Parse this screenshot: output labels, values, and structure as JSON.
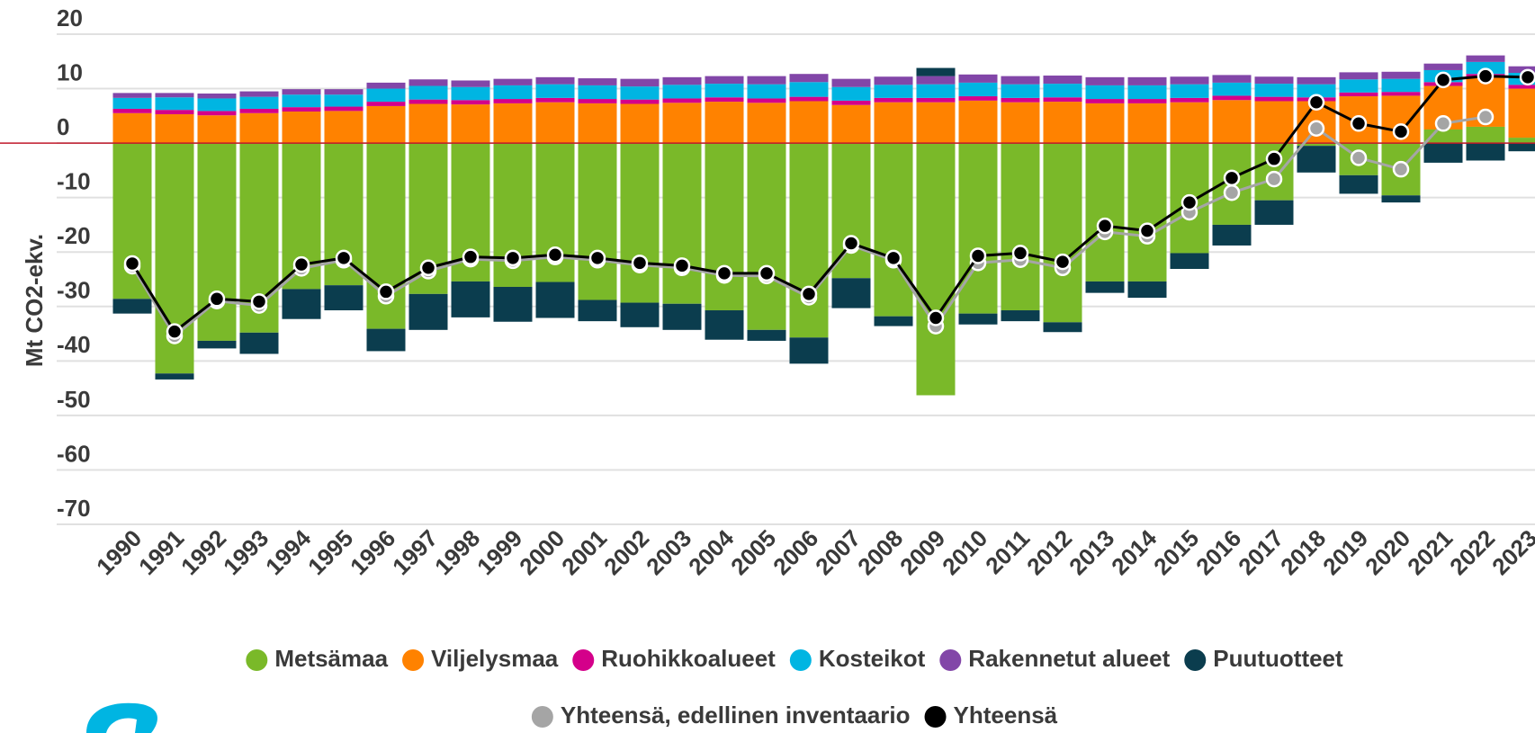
{
  "chart_data": {
    "type": "bar",
    "stacked": true,
    "y_label": "Mt CO2-ekv.",
    "categories": [
      "1990",
      "1991",
      "1992",
      "1993",
      "1994",
      "1995",
      "1996",
      "1997",
      "1998",
      "1999",
      "2000",
      "2001",
      "2002",
      "2003",
      "2004",
      "2005",
      "2006",
      "2007",
      "2008",
      "2009",
      "2010",
      "2011",
      "2012",
      "2013",
      "2014",
      "2015",
      "2016",
      "2017",
      "2018",
      "2019",
      "2020",
      "2021",
      "2022",
      "2023"
    ],
    "ylim": [
      -70,
      20
    ],
    "yticks": [
      -70,
      -60,
      -50,
      -40,
      -30,
      -20,
      -10,
      0,
      10,
      20
    ],
    "grid": true,
    "series": [
      {
        "name": "Metsämaa",
        "color": "#7ab929",
        "values": [
          -28.6,
          -42.3,
          -36.3,
          -34.8,
          -26.8,
          -26.1,
          -34.1,
          -27.7,
          -25.4,
          -26.4,
          -25.5,
          -28.8,
          -29.3,
          -29.5,
          -30.7,
          -34.3,
          -35.7,
          -24.8,
          -31.8,
          -46.3,
          -31.3,
          -30.7,
          -32.9,
          -25.4,
          -25.4,
          -20.2,
          -15.0,
          -10.5,
          -0.5,
          -5.9,
          -9.6,
          2.5,
          3.0,
          1.0
        ]
      },
      {
        "name": "Viljelysmaa",
        "color": "#ff8200",
        "values": [
          5.5,
          5.3,
          5.1,
          5.5,
          5.8,
          5.9,
          6.8,
          7.2,
          7.1,
          7.3,
          7.5,
          7.3,
          7.2,
          7.4,
          7.6,
          7.4,
          7.7,
          7.0,
          7.5,
          7.5,
          7.8,
          7.5,
          7.6,
          7.3,
          7.3,
          7.5,
          7.9,
          7.7,
          7.7,
          8.6,
          8.7,
          8.0,
          9.0,
          9.0
        ]
      },
      {
        "name": "Ruohikkoalueet",
        "color": "#d4008a",
        "values": [
          0.8,
          0.8,
          0.8,
          0.8,
          0.8,
          0.8,
          0.8,
          0.8,
          0.8,
          0.8,
          0.8,
          0.8,
          0.8,
          0.8,
          0.8,
          0.8,
          0.8,
          0.8,
          0.8,
          0.8,
          0.8,
          0.8,
          0.8,
          0.8,
          0.8,
          0.8,
          0.8,
          0.8,
          0.7,
          0.7,
          0.7,
          0.7,
          0.7,
          0.7
        ]
      },
      {
        "name": "Kosteikot",
        "color": "#00b5e2",
        "values": [
          2.0,
          2.3,
          2.3,
          2.2,
          2.3,
          2.2,
          2.4,
          2.5,
          2.4,
          2.5,
          2.5,
          2.5,
          2.4,
          2.5,
          2.5,
          2.6,
          2.7,
          2.5,
          2.4,
          2.5,
          2.5,
          2.5,
          2.5,
          2.5,
          2.5,
          2.5,
          2.4,
          2.4,
          2.4,
          2.4,
          2.4,
          2.2,
          2.2,
          2.2
        ]
      },
      {
        "name": "Rakennetut alueet",
        "color": "#8246a8",
        "values": [
          0.9,
          0.8,
          0.9,
          1.0,
          1.0,
          1.0,
          1.1,
          1.2,
          1.2,
          1.2,
          1.3,
          1.3,
          1.4,
          1.4,
          1.4,
          1.5,
          1.5,
          1.5,
          1.5,
          1.5,
          1.5,
          1.5,
          1.5,
          1.5,
          1.5,
          1.4,
          1.4,
          1.3,
          1.3,
          1.3,
          1.3,
          1.2,
          1.2,
          1.2
        ]
      },
      {
        "name": "Puutuotteet",
        "color": "#0b3d4e",
        "values": [
          -2.7,
          -1.1,
          -1.4,
          -3.9,
          -5.5,
          -4.6,
          -4.1,
          -6.6,
          -6.6,
          -6.4,
          -6.6,
          -3.9,
          -4.5,
          -4.8,
          -5.4,
          -2.0,
          -4.8,
          -5.5,
          -1.8,
          1.5,
          -2.0,
          -2.0,
          -1.8,
          -2.1,
          -3.0,
          -2.9,
          -3.8,
          -4.5,
          -4.9,
          -3.4,
          -1.3,
          -3.6,
          -3.2,
          -1.5
        ]
      },
      {
        "name": "Yhteensä, edellinen inventaario",
        "type": "line",
        "color": "#a5a5a5",
        "values": [
          -22.6,
          -35.4,
          -29.0,
          -29.8,
          -23.0,
          -21.5,
          -28.1,
          -23.5,
          -21.3,
          -21.6,
          -20.9,
          -21.5,
          -22.4,
          -22.9,
          -24.3,
          -24.4,
          -28.3,
          -18.8,
          -21.5,
          -33.6,
          -22.0,
          -21.4,
          -22.9,
          -16.3,
          -17.1,
          -12.7,
          -9.1,
          -6.6,
          2.7,
          -2.7,
          -4.8,
          3.6,
          4.8,
          null
        ]
      },
      {
        "name": "Yhteensä",
        "type": "line",
        "color": "#000000",
        "values": [
          -22.1,
          -34.6,
          -28.6,
          -29.1,
          -22.3,
          -21.1,
          -27.3,
          -22.9,
          -20.9,
          -21.1,
          -20.5,
          -21.1,
          -22.0,
          -22.5,
          -23.9,
          -23.9,
          -27.7,
          -18.4,
          -21.1,
          -32.1,
          -20.7,
          -20.2,
          -21.8,
          -15.2,
          -16.1,
          -10.9,
          -6.4,
          -2.9,
          7.5,
          3.6,
          2.1,
          11.6,
          12.3,
          12.1
        ]
      }
    ]
  }
}
